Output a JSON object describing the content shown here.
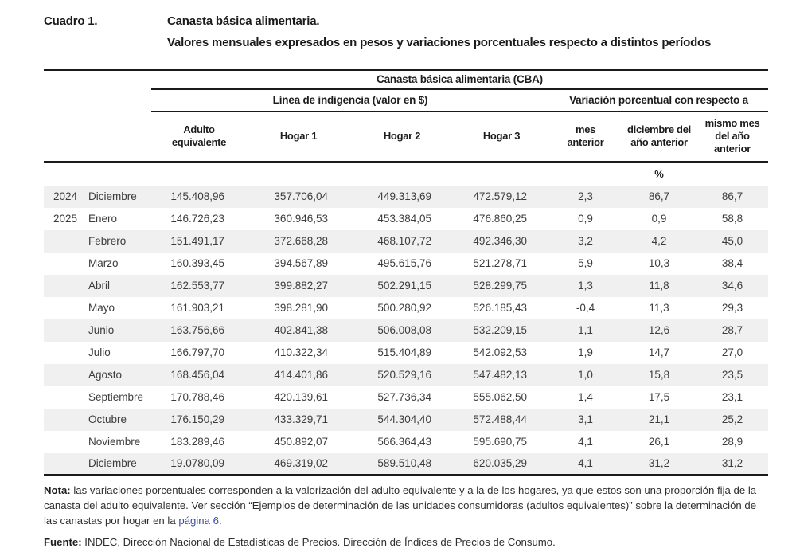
{
  "title": {
    "label": "Cuadro 1.",
    "line1": "Canasta básica alimentaria.",
    "line2": "Valores mensuales expresados en pesos y variaciones porcentuales respecto a distintos períodos"
  },
  "table": {
    "group_header": "Canasta básica alimentaria (CBA)",
    "subgroup_left": "Línea de indigencia (valor en $)",
    "subgroup_right": "Variación porcentual con respecto a",
    "columns": [
      "Adulto\nequivalente",
      "Hogar 1",
      "Hogar 2",
      "Hogar 3",
      "mes\nanterior",
      "diciembre del\naño anterior",
      "mismo mes\ndel año\nanterior"
    ],
    "unit_label": "%",
    "rows": [
      {
        "year": "2024",
        "month": "Diciembre",
        "values": [
          "145.408,96",
          "357.706,04",
          "449.313,69",
          "472.579,12",
          "2,3",
          "86,7",
          "86,7"
        ]
      },
      {
        "year": "2025",
        "month": "Enero",
        "values": [
          "146.726,23",
          "360.946,53",
          "453.384,05",
          "476.860,25",
          "0,9",
          "0,9",
          "58,8"
        ]
      },
      {
        "year": "",
        "month": "Febrero",
        "values": [
          "151.491,17",
          "372.668,28",
          "468.107,72",
          "492.346,30",
          "3,2",
          "4,2",
          "45,0"
        ]
      },
      {
        "year": "",
        "month": "Marzo",
        "values": [
          "160.393,45",
          "394.567,89",
          "495.615,76",
          "521.278,71",
          "5,9",
          "10,3",
          "38,4"
        ]
      },
      {
        "year": "",
        "month": "Abril",
        "values": [
          "162.553,77",
          "399.882,27",
          "502.291,15",
          "528.299,75",
          "1,3",
          "11,8",
          "34,6"
        ]
      },
      {
        "year": "",
        "month": "Mayo",
        "values": [
          "161.903,21",
          "398.281,90",
          "500.280,92",
          "526.185,43",
          "-0,4",
          "11,3",
          "29,3"
        ]
      },
      {
        "year": "",
        "month": "Junio",
        "values": [
          "163.756,66",
          "402.841,38",
          "506.008,08",
          "532.209,15",
          "1,1",
          "12,6",
          "28,7"
        ]
      },
      {
        "year": "",
        "month": "Julio",
        "values": [
          "166.797,70",
          "410.322,34",
          "515.404,89",
          "542.092,53",
          "1,9",
          "14,7",
          "27,0"
        ]
      },
      {
        "year": "",
        "month": "Agosto",
        "values": [
          "168.456,04",
          "414.401,86",
          "520.529,16",
          "547.482,13",
          "1,0",
          "15,8",
          "23,5"
        ]
      },
      {
        "year": "",
        "month": "Septiembre",
        "values": [
          "170.788,46",
          "420.139,61",
          "527.736,34",
          "555.062,50",
          "1,4",
          "17,5",
          "23,1"
        ]
      },
      {
        "year": "",
        "month": "Octubre",
        "values": [
          "176.150,29",
          "433.329,71",
          "544.304,40",
          "572.488,44",
          "3,1",
          "21,1",
          "25,2"
        ]
      },
      {
        "year": "",
        "month": "Noviembre",
        "values": [
          "183.289,46",
          "450.892,07",
          "566.364,43",
          "595.690,75",
          "4,1",
          "26,1",
          "28,9"
        ]
      },
      {
        "year": "",
        "month": "Diciembre",
        "values": [
          "19.0780,09",
          "469.319,02",
          "589.510,48",
          "620.035,29",
          "4,1",
          "31,2",
          "31,2"
        ]
      }
    ]
  },
  "footnotes": {
    "note_label": "Nota:",
    "note_part1": " las variaciones porcentuales corresponden a la valorización del adulto equivalente y a la de los hogares, ya que estos son una proporción fija de la canasta del adulto equivalente. Ver sección “Ejemplos de determinación de las unidades consumidoras (adultos equivalentes)” sobre la determinación de las canastas por hogar en la ",
    "note_link": "página 6",
    "note_suffix": ".",
    "source_label": "Fuente:",
    "source_text": " INDEC, Dirección Nacional de Estadísticas de Precios. Dirección de Índices de Precios de Consumo."
  },
  "colors": {
    "rule": "#1a1a1a",
    "stripe": "#f0f0f0",
    "link": "#3b4da0",
    "data_text": "#3c3c3c"
  }
}
